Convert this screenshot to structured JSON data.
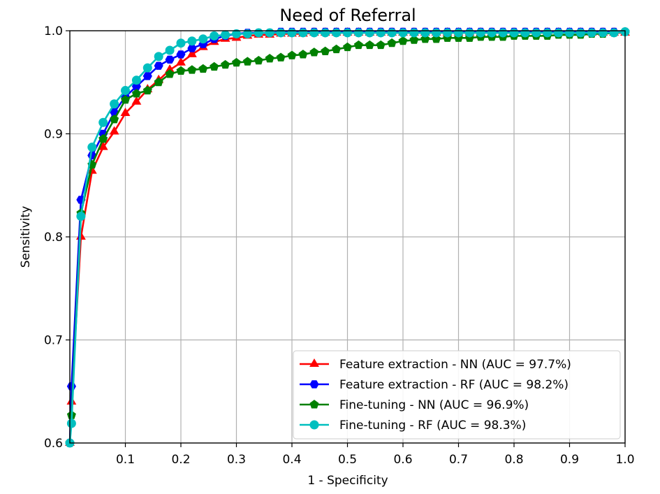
{
  "chart_data": {
    "type": "line",
    "title": "Need of Referral",
    "xlabel": "1 - Specificity",
    "ylabel": "Sensitivity",
    "xlim": [
      0.0,
      1.0
    ],
    "ylim": [
      0.6,
      1.0
    ],
    "xticks": [
      "0.1",
      "0.2",
      "0.3",
      "0.4",
      "0.5",
      "0.6",
      "0.7",
      "0.8",
      "0.9",
      "1.0"
    ],
    "yticks": [
      "0.6",
      "0.7",
      "0.8",
      "0.9",
      "1.0"
    ],
    "grid": true,
    "legend_position": "lower-right",
    "series": [
      {
        "name": "Feature extraction - NN (AUC = 97.7%)",
        "color": "#ff0000",
        "marker": "triangle",
        "x": [
          0.0,
          0.003,
          0.02,
          0.04,
          0.06,
          0.08,
          0.1,
          0.12,
          0.14,
          0.16,
          0.18,
          0.2,
          0.22,
          0.24,
          0.26,
          0.28,
          0.3,
          0.32,
          0.34,
          0.36,
          0.38,
          0.4,
          0.42,
          0.44,
          0.46,
          0.48,
          0.5,
          0.52,
          0.54,
          0.56,
          0.58,
          0.6,
          0.62,
          0.64,
          0.66,
          0.68,
          0.7,
          0.72,
          0.74,
          0.76,
          0.78,
          0.8,
          0.82,
          0.84,
          0.86,
          0.88,
          0.9,
          0.92,
          0.94,
          0.96,
          0.98,
          1.0
        ],
        "y": [
          0.6,
          0.64,
          0.8,
          0.864,
          0.887,
          0.902,
          0.92,
          0.931,
          0.943,
          0.952,
          0.962,
          0.969,
          0.977,
          0.984,
          0.989,
          0.992,
          0.993,
          0.995,
          0.996,
          0.996,
          0.997,
          0.997,
          0.997,
          0.998,
          0.998,
          0.998,
          0.998,
          0.998,
          0.998,
          0.998,
          0.998,
          0.998,
          0.998,
          0.998,
          0.998,
          0.998,
          0.998,
          0.998,
          0.998,
          0.998,
          0.998,
          0.998,
          0.998,
          0.998,
          0.998,
          0.998,
          0.998,
          0.998,
          0.998,
          0.998,
          0.998,
          0.998
        ]
      },
      {
        "name": "Feature extraction - RF (AUC = 98.2%)",
        "color": "#0000ff",
        "marker": "hexagon",
        "x": [
          0.0,
          0.003,
          0.02,
          0.04,
          0.06,
          0.08,
          0.1,
          0.12,
          0.14,
          0.16,
          0.18,
          0.2,
          0.22,
          0.24,
          0.26,
          0.28,
          0.3,
          0.32,
          0.34,
          0.36,
          0.38,
          0.4,
          0.42,
          0.44,
          0.46,
          0.48,
          0.5,
          0.52,
          0.54,
          0.56,
          0.58,
          0.6,
          0.62,
          0.64,
          0.66,
          0.68,
          0.7,
          0.72,
          0.74,
          0.76,
          0.78,
          0.8,
          0.82,
          0.84,
          0.86,
          0.88,
          0.9,
          0.92,
          0.94,
          0.96,
          0.98,
          1.0
        ],
        "y": [
          0.6,
          0.655,
          0.836,
          0.879,
          0.9,
          0.921,
          0.936,
          0.946,
          0.956,
          0.966,
          0.972,
          0.977,
          0.983,
          0.987,
          0.992,
          0.995,
          0.997,
          0.998,
          0.998,
          0.998,
          0.999,
          0.999,
          0.999,
          0.999,
          0.999,
          0.999,
          0.999,
          0.999,
          0.999,
          0.999,
          0.999,
          0.999,
          0.999,
          0.999,
          0.999,
          0.999,
          0.999,
          0.999,
          0.999,
          0.999,
          0.999,
          0.999,
          0.999,
          0.999,
          0.999,
          0.999,
          0.999,
          0.999,
          0.999,
          0.999,
          0.999,
          0.999
        ]
      },
      {
        "name": "Fine-tuning - NN (AUC = 96.9%)",
        "color": "#008000",
        "marker": "pentagon",
        "x": [
          0.0,
          0.003,
          0.02,
          0.04,
          0.06,
          0.08,
          0.1,
          0.12,
          0.14,
          0.16,
          0.18,
          0.2,
          0.22,
          0.24,
          0.26,
          0.28,
          0.3,
          0.32,
          0.34,
          0.36,
          0.38,
          0.4,
          0.42,
          0.44,
          0.46,
          0.48,
          0.5,
          0.52,
          0.54,
          0.56,
          0.58,
          0.6,
          0.62,
          0.64,
          0.66,
          0.68,
          0.7,
          0.72,
          0.74,
          0.76,
          0.78,
          0.8,
          0.82,
          0.84,
          0.86,
          0.88,
          0.9,
          0.92,
          0.94,
          0.96,
          0.98,
          1.0
        ],
        "y": [
          0.6,
          0.627,
          0.823,
          0.87,
          0.895,
          0.914,
          0.933,
          0.939,
          0.942,
          0.95,
          0.958,
          0.961,
          0.962,
          0.963,
          0.965,
          0.967,
          0.969,
          0.97,
          0.971,
          0.973,
          0.974,
          0.976,
          0.977,
          0.979,
          0.98,
          0.982,
          0.984,
          0.986,
          0.986,
          0.986,
          0.988,
          0.99,
          0.991,
          0.992,
          0.992,
          0.993,
          0.993,
          0.993,
          0.994,
          0.994,
          0.994,
          0.995,
          0.995,
          0.995,
          0.995,
          0.996,
          0.996,
          0.996,
          0.997,
          0.997,
          0.998,
          0.999
        ]
      },
      {
        "name": "Fine-tuning - RF (AUC = 98.3%)",
        "color": "#00bfbf",
        "marker": "circle",
        "x": [
          0.0,
          0.003,
          0.02,
          0.04,
          0.06,
          0.08,
          0.1,
          0.12,
          0.14,
          0.16,
          0.18,
          0.2,
          0.22,
          0.24,
          0.26,
          0.28,
          0.3,
          0.32,
          0.34,
          0.36,
          0.38,
          0.4,
          0.42,
          0.44,
          0.46,
          0.48,
          0.5,
          0.52,
          0.54,
          0.56,
          0.58,
          0.6,
          0.62,
          0.64,
          0.66,
          0.68,
          0.7,
          0.72,
          0.74,
          0.76,
          0.78,
          0.8,
          0.82,
          0.84,
          0.86,
          0.88,
          0.9,
          0.92,
          0.94,
          0.96,
          0.98,
          1.0
        ],
        "y": [
          0.6,
          0.619,
          0.82,
          0.887,
          0.911,
          0.929,
          0.942,
          0.952,
          0.964,
          0.975,
          0.981,
          0.988,
          0.99,
          0.992,
          0.995,
          0.996,
          0.997,
          0.997,
          0.998,
          0.998,
          0.998,
          0.998,
          0.998,
          0.998,
          0.998,
          0.998,
          0.998,
          0.998,
          0.998,
          0.998,
          0.998,
          0.998,
          0.998,
          0.998,
          0.998,
          0.998,
          0.998,
          0.998,
          0.998,
          0.998,
          0.998,
          0.998,
          0.998,
          0.998,
          0.998,
          0.998,
          0.998,
          0.998,
          0.998,
          0.998,
          0.998,
          0.999
        ]
      }
    ]
  }
}
